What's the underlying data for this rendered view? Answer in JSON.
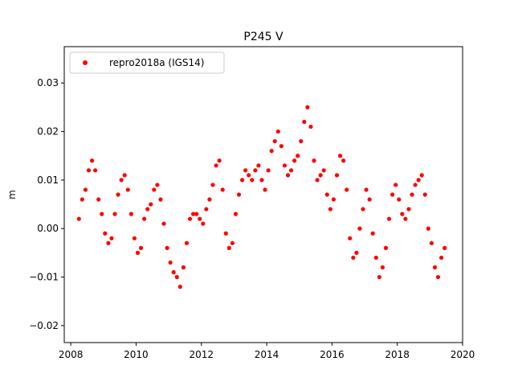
{
  "chart_data": {
    "type": "scatter",
    "title": "P245 V",
    "xlabel": "",
    "ylabel": "m",
    "xlim": [
      2007.8,
      2020.0
    ],
    "ylim": [
      -0.0235,
      0.0375
    ],
    "x_ticks": [
      2008,
      2010,
      2012,
      2014,
      2016,
      2018,
      2020
    ],
    "x_tick_labels": [
      "2008",
      "2010",
      "2012",
      "2014",
      "2016",
      "2018",
      "2020"
    ],
    "y_ticks": [
      -0.02,
      -0.01,
      0.0,
      0.01,
      0.02,
      0.03
    ],
    "y_tick_labels": [
      "−0.02",
      "−0.01",
      "0.00",
      "0.01",
      "0.02",
      "0.03"
    ],
    "grid": false,
    "legend_position": "top-left",
    "series": [
      {
        "name": "repro2018a (IGS14)",
        "color": "#ff0000",
        "marker": "circle",
        "x": [
          2008.25,
          2008.35,
          2008.45,
          2008.55,
          2008.65,
          2008.75,
          2008.85,
          2008.95,
          2009.05,
          2009.15,
          2009.25,
          2009.35,
          2009.45,
          2009.55,
          2009.65,
          2009.75,
          2009.85,
          2009.95,
          2010.05,
          2010.15,
          2010.25,
          2010.35,
          2010.45,
          2010.55,
          2010.65,
          2010.75,
          2010.85,
          2010.95,
          2011.05,
          2011.15,
          2011.25,
          2011.35,
          2011.45,
          2011.55,
          2011.65,
          2011.75,
          2011.85,
          2011.95,
          2012.05,
          2012.15,
          2012.25,
          2012.35,
          2012.45,
          2012.55,
          2012.65,
          2012.75,
          2012.85,
          2012.95,
          2013.05,
          2013.15,
          2013.25,
          2013.35,
          2013.45,
          2013.55,
          2013.65,
          2013.75,
          2013.85,
          2013.95,
          2014.05,
          2014.15,
          2014.25,
          2014.35,
          2014.45,
          2014.55,
          2014.65,
          2014.75,
          2014.85,
          2014.95,
          2015.05,
          2015.15,
          2015.25,
          2015.35,
          2015.45,
          2015.55,
          2015.65,
          2015.75,
          2015.85,
          2015.95,
          2016.05,
          2016.15,
          2016.25,
          2016.35,
          2016.45,
          2016.55,
          2016.65,
          2016.75,
          2016.85,
          2016.95,
          2017.05,
          2017.15,
          2017.25,
          2017.35,
          2017.45,
          2017.55,
          2017.65,
          2017.75,
          2017.85,
          2017.95,
          2018.05,
          2018.15,
          2018.25,
          2018.35,
          2018.45,
          2018.55,
          2018.65,
          2018.75,
          2018.85,
          2018.95,
          2019.05,
          2019.15,
          2019.25,
          2019.35,
          2019.45
        ],
        "y": [
          0.002,
          0.006,
          0.008,
          0.012,
          0.014,
          0.012,
          0.006,
          0.003,
          -0.001,
          -0.003,
          -0.002,
          0.003,
          0.007,
          0.01,
          0.011,
          0.008,
          0.003,
          -0.002,
          -0.005,
          -0.004,
          0.002,
          0.004,
          0.005,
          0.008,
          0.009,
          0.006,
          0.001,
          -0.004,
          -0.007,
          -0.009,
          -0.01,
          -0.012,
          -0.008,
          -0.003,
          0.002,
          0.003,
          0.003,
          0.002,
          0.001,
          0.004,
          0.006,
          0.009,
          0.013,
          0.014,
          0.008,
          -0.001,
          -0.004,
          -0.003,
          0.003,
          0.007,
          0.01,
          0.012,
          0.011,
          0.01,
          0.012,
          0.013,
          0.01,
          0.008,
          0.012,
          0.016,
          0.018,
          0.02,
          0.017,
          0.013,
          0.011,
          0.012,
          0.014,
          0.015,
          0.018,
          0.022,
          0.025,
          0.021,
          0.014,
          0.01,
          0.011,
          0.012,
          0.007,
          0.004,
          0.006,
          0.011,
          0.015,
          0.014,
          0.008,
          -0.002,
          -0.006,
          -0.005,
          0.0,
          0.004,
          0.008,
          0.006,
          -0.001,
          -0.006,
          -0.01,
          -0.008,
          -0.004,
          0.002,
          0.007,
          0.009,
          0.006,
          0.003,
          0.002,
          0.004,
          0.007,
          0.009,
          0.01,
          0.011,
          0.007,
          0.0,
          -0.003,
          -0.008,
          -0.01,
          -0.006,
          -0.004
        ]
      }
    ]
  }
}
